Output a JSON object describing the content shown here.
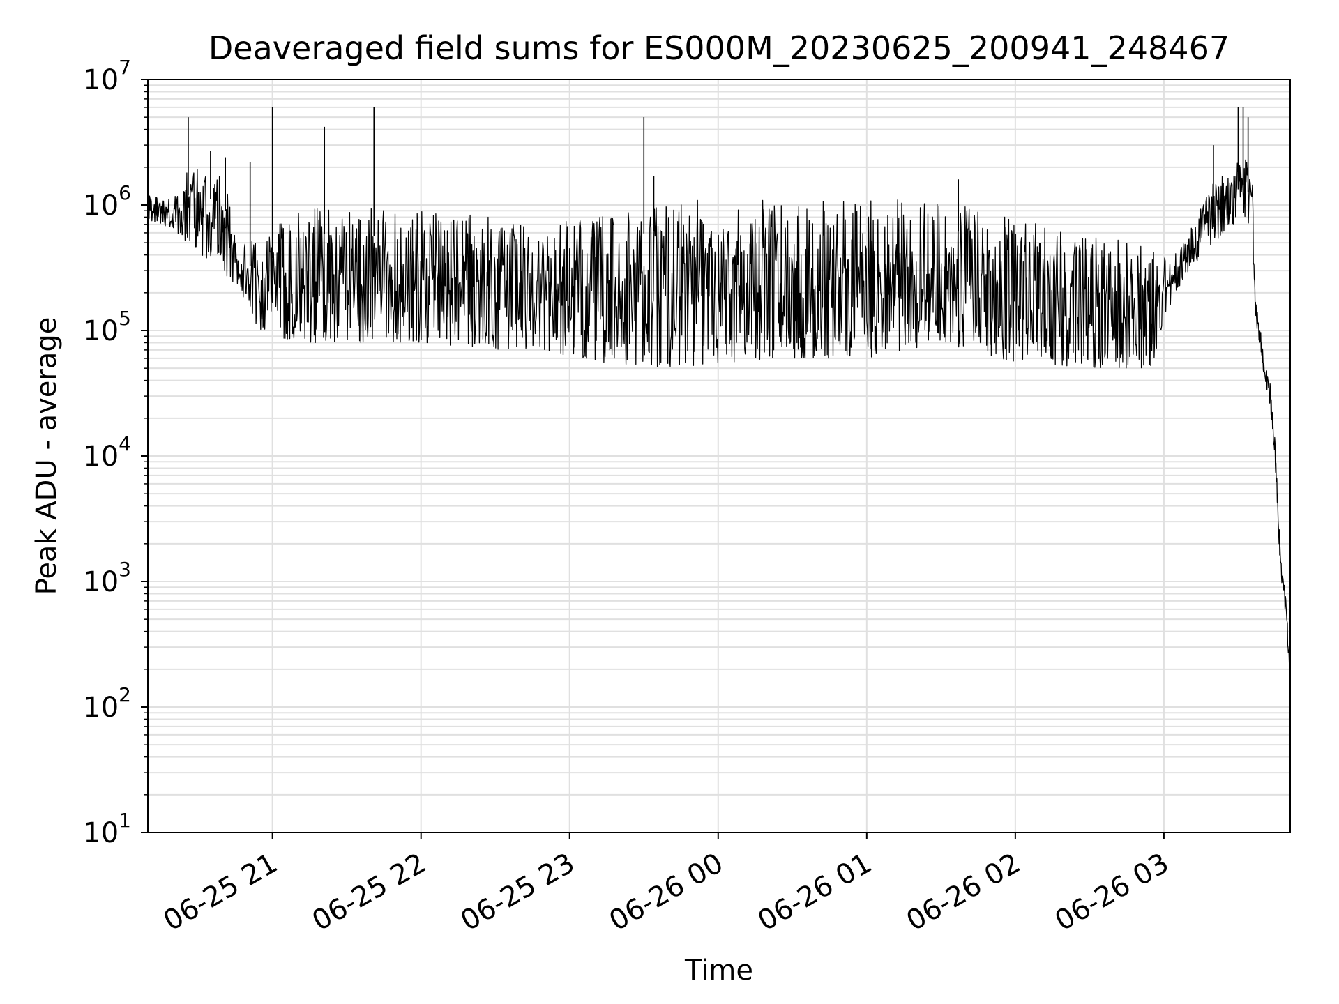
{
  "chart_data": {
    "type": "line",
    "title": "Deaveraged field sums for ES000M_20230625_200941_248467",
    "xlabel": "Time",
    "ylabel": "Peak ADU - average",
    "yscale": "log",
    "ylim": [
      10,
      10000000
    ],
    "xlim": [
      "2023-06-25 20:09:41",
      "2023-06-26 03:51:00"
    ],
    "grid": true,
    "grid_color": "#e0e0e0",
    "line_color": "#000000",
    "x_ticks": [
      {
        "value": "2023-06-25 21:00",
        "label": "06-25 21"
      },
      {
        "value": "2023-06-25 22:00",
        "label": "06-25 22"
      },
      {
        "value": "2023-06-25 23:00",
        "label": "06-25 23"
      },
      {
        "value": "2023-06-26 00:00",
        "label": "06-26 00"
      },
      {
        "value": "2023-06-26 01:00",
        "label": "06-26 01"
      },
      {
        "value": "2023-06-26 02:00",
        "label": "06-26 02"
      },
      {
        "value": "2023-06-26 03:00",
        "label": "06-26 03"
      }
    ],
    "y_ticks": [
      {
        "value": 10,
        "base": "10",
        "exp": "1"
      },
      {
        "value": 100,
        "base": "10",
        "exp": "2"
      },
      {
        "value": 1000,
        "base": "10",
        "exp": "3"
      },
      {
        "value": 10000,
        "base": "10",
        "exp": "4"
      },
      {
        "value": 100000,
        "base": "10",
        "exp": "5"
      },
      {
        "value": 1000000,
        "base": "10",
        "exp": "6"
      },
      {
        "value": 10000000,
        "base": "10",
        "exp": "7"
      }
    ],
    "series": [
      {
        "name": "",
        "points": [
          {
            "x": "2023-06-25 20:09:41",
            "y": 1000000
          },
          {
            "x": "2023-06-25 20:20",
            "y": 900000
          },
          {
            "x": "2023-06-25 20:26",
            "y": 3000000
          },
          {
            "x": "2023-06-25 20:30",
            "y": 1000000
          },
          {
            "x": "2023-06-25 20:37",
            "y": 1000000
          },
          {
            "x": "2023-06-25 20:42",
            "y": 700000
          },
          {
            "x": "2023-06-25 20:47",
            "y": 300000
          },
          {
            "x": "2023-06-25 20:55",
            "y": 150000
          },
          {
            "x": "2023-06-25 21:15",
            "y": 200000
          },
          {
            "x": "2023-06-25 21:45",
            "y": 400000
          },
          {
            "x": "2023-06-25 22:00",
            "y": 350000
          },
          {
            "x": "2023-06-25 22:30",
            "y": 200000
          },
          {
            "x": "2023-06-25 23:00",
            "y": 150000
          },
          {
            "x": "2023-06-25 23:30",
            "y": 120000
          },
          {
            "x": "2023-06-26 00:00",
            "y": 150000
          },
          {
            "x": "2023-06-26 00:30",
            "y": 200000
          },
          {
            "x": "2023-06-26 01:00",
            "y": 200000
          },
          {
            "x": "2023-06-26 01:30",
            "y": 300000
          },
          {
            "x": "2023-06-26 02:00",
            "y": 150000
          },
          {
            "x": "2023-06-26 02:30",
            "y": 100000
          },
          {
            "x": "2023-06-26 02:55",
            "y": 80000
          },
          {
            "x": "2023-06-26 03:05",
            "y": 250000
          },
          {
            "x": "2023-06-26 03:15",
            "y": 700000
          },
          {
            "x": "2023-06-26 03:30",
            "y": 1200000
          },
          {
            "x": "2023-06-26 03:35",
            "y": 1000000
          },
          {
            "x": "2023-06-26 03:37",
            "y": 150000
          },
          {
            "x": "2023-06-26 03:40",
            "y": 60000
          },
          {
            "x": "2023-06-26 03:43",
            "y": 30000
          },
          {
            "x": "2023-06-26 03:45",
            "y": 10000
          },
          {
            "x": "2023-06-26 03:47",
            "y": 1500
          },
          {
            "x": "2023-06-26 03:49",
            "y": 700
          },
          {
            "x": "2023-06-26 03:51",
            "y": 200
          }
        ],
        "fluctuation_envelope": [
          {
            "x": "2023-06-25 20:09:41",
            "low": 750000,
            "high": 1200000
          },
          {
            "x": "2023-06-25 20:20",
            "low": 650000,
            "high": 1100000
          },
          {
            "x": "2023-06-25 20:25",
            "low": 500000,
            "high": 2000000
          },
          {
            "x": "2023-06-25 20:40",
            "low": 300000,
            "high": 1800000
          },
          {
            "x": "2023-06-25 20:46",
            "low": 200000,
            "high": 600000
          },
          {
            "x": "2023-06-25 20:55",
            "low": 100000,
            "high": 500000
          },
          {
            "x": "2023-06-25 21:10",
            "low": 80000,
            "high": 1000000
          },
          {
            "x": "2023-06-25 22:00",
            "low": 80000,
            "high": 900000
          },
          {
            "x": "2023-06-25 22:30",
            "low": 70000,
            "high": 800000
          },
          {
            "x": "2023-06-25 22:50",
            "low": 70000,
            "high": 700000
          },
          {
            "x": "2023-06-25 23:10",
            "low": 55000,
            "high": 800000
          },
          {
            "x": "2023-06-25 23:40",
            "low": 50000,
            "high": 1100000
          },
          {
            "x": "2023-06-26 00:00",
            "low": 55000,
            "high": 1100000
          },
          {
            "x": "2023-06-26 00:30",
            "low": 60000,
            "high": 1100000
          },
          {
            "x": "2023-06-26 01:00",
            "low": 60000,
            "high": 1100000
          },
          {
            "x": "2023-06-26 01:30",
            "low": 80000,
            "high": 1100000
          },
          {
            "x": "2023-06-26 02:00",
            "low": 55000,
            "high": 800000
          },
          {
            "x": "2023-06-26 02:30",
            "low": 50000,
            "high": 600000
          },
          {
            "x": "2023-06-26 02:55",
            "low": 50000,
            "high": 500000
          },
          {
            "x": "2023-06-26 03:02",
            "low": 150000,
            "high": 350000
          },
          {
            "x": "2023-06-26 03:10",
            "low": 300000,
            "high": 600000
          },
          {
            "x": "2023-06-26 03:20",
            "low": 500000,
            "high": 1500000
          },
          {
            "x": "2023-06-26 03:33",
            "low": 800000,
            "high": 2500000
          },
          {
            "x": "2023-06-26 03:36",
            "low": 600000,
            "high": 1500000
          }
        ],
        "spikes": [
          {
            "x": "2023-06-25 20:26",
            "y": 5000000
          },
          {
            "x": "2023-06-25 20:35",
            "y": 2700000
          },
          {
            "x": "2023-06-25 20:41",
            "y": 2400000
          },
          {
            "x": "2023-06-25 20:51",
            "y": 2200000
          },
          {
            "x": "2023-06-25 21:00",
            "y": 6000000
          },
          {
            "x": "2023-06-25 21:21",
            "y": 4200000
          },
          {
            "x": "2023-06-25 21:41",
            "y": 6000000
          },
          {
            "x": "2023-06-25 23:30",
            "y": 5000000
          },
          {
            "x": "2023-06-25 23:34",
            "y": 1700000
          },
          {
            "x": "2023-06-26 01:37",
            "y": 1600000
          },
          {
            "x": "2023-06-26 03:20",
            "y": 3000000
          },
          {
            "x": "2023-06-26 03:30",
            "y": 6000000
          },
          {
            "x": "2023-06-26 03:32",
            "y": 6000000
          },
          {
            "x": "2023-06-26 03:34",
            "y": 5000000
          }
        ]
      }
    ]
  }
}
